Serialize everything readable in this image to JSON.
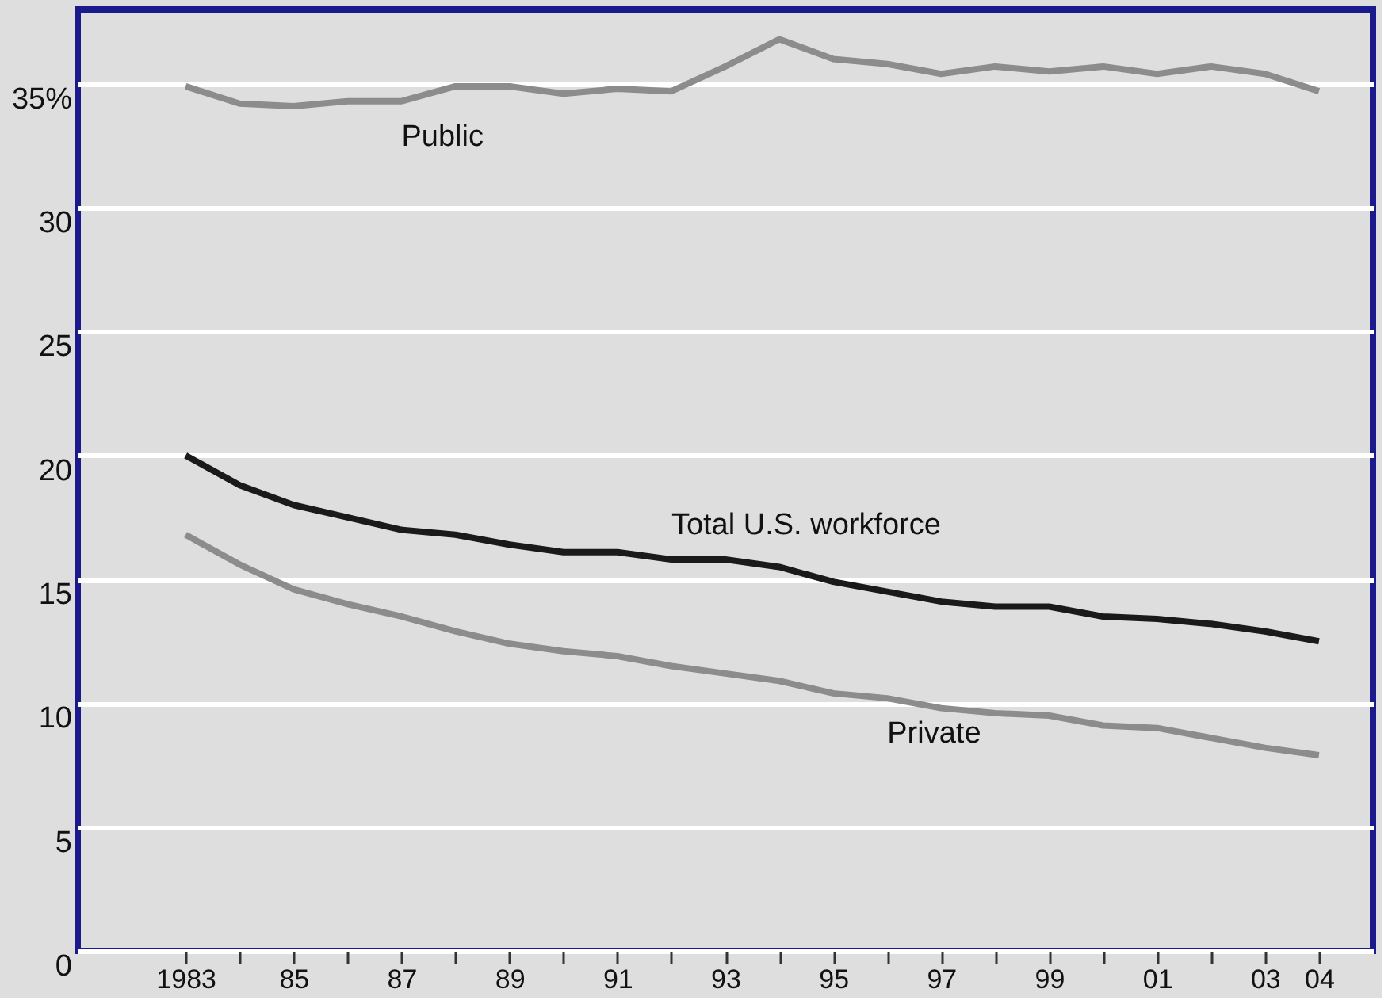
{
  "chart_data": {
    "type": "line",
    "x": [
      1983,
      1984,
      1985,
      1986,
      1987,
      1988,
      1989,
      1990,
      1991,
      1992,
      1993,
      1994,
      1995,
      1996,
      1997,
      1998,
      1999,
      2000,
      2001,
      2002,
      2003,
      2004
    ],
    "series": [
      {
        "name": "Public",
        "color": "#8c8c8c",
        "values": [
          34.9,
          34.2,
          34.1,
          34.3,
          34.3,
          34.9,
          34.9,
          34.6,
          34.8,
          34.7,
          35.7,
          36.8,
          36.0,
          35.8,
          35.4,
          35.7,
          35.5,
          35.7,
          35.4,
          35.7,
          35.4,
          34.7
        ]
      },
      {
        "name": "Total U.S. workforce",
        "color": "#1a1a1a",
        "values": [
          20.0,
          18.8,
          18.0,
          17.5,
          17.0,
          16.8,
          16.4,
          16.1,
          16.1,
          15.8,
          15.8,
          15.5,
          14.9,
          14.5,
          14.1,
          13.9,
          13.9,
          13.5,
          13.4,
          13.2,
          12.9,
          12.5
        ]
      },
      {
        "name": "Private",
        "color": "#8c8c8c",
        "values": [
          16.8,
          15.6,
          14.6,
          14.0,
          13.5,
          12.9,
          12.4,
          12.1,
          11.9,
          11.5,
          11.2,
          10.9,
          10.4,
          10.2,
          9.8,
          9.6,
          9.5,
          9.1,
          9.0,
          8.6,
          8.2,
          7.9
        ]
      }
    ],
    "xlim": [
      1981,
      2005
    ],
    "xticks": [
      {
        "value": 1983,
        "label": "1983"
      },
      {
        "value": 1984,
        "label": null
      },
      {
        "value": 1985,
        "label": "85"
      },
      {
        "value": 1986,
        "label": null
      },
      {
        "value": 1987,
        "label": "87"
      },
      {
        "value": 1988,
        "label": null
      },
      {
        "value": 1989,
        "label": "89"
      },
      {
        "value": 1990,
        "label": null
      },
      {
        "value": 1991,
        "label": "91"
      },
      {
        "value": 1992,
        "label": null
      },
      {
        "value": 1993,
        "label": "93"
      },
      {
        "value": 1994,
        "label": null
      },
      {
        "value": 1995,
        "label": "95"
      },
      {
        "value": 1996,
        "label": null
      },
      {
        "value": 1997,
        "label": "97"
      },
      {
        "value": 1998,
        "label": null
      },
      {
        "value": 1999,
        "label": "99"
      },
      {
        "value": 2000,
        "label": null
      },
      {
        "value": 2001,
        "label": "01"
      },
      {
        "value": 2002,
        "label": null
      },
      {
        "value": 2003,
        "label": "03"
      },
      {
        "value": 2004,
        "label": "04"
      }
    ],
    "ylim": [
      0,
      38
    ],
    "yticks": [
      0,
      5,
      10,
      15,
      20,
      25,
      30,
      {
        "value": 35,
        "label": "35%"
      }
    ],
    "grid": "y",
    "marker": "none",
    "line_style": "solid"
  }
}
